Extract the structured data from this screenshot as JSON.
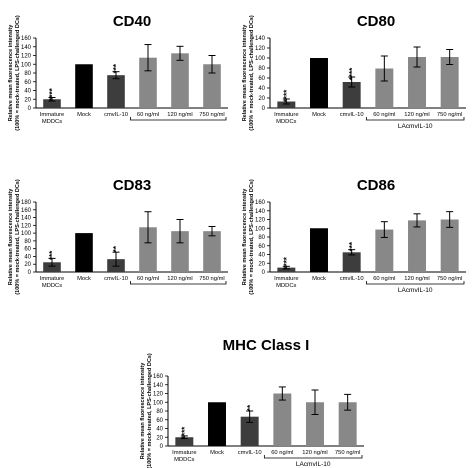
{
  "y_axis_label_line1": "Relative mean fluorescence intensity",
  "y_axis_label_line2": "(100% = mock-treated, LPS-challenged DCs)",
  "bar_colors": {
    "dark": "#3d3d3d",
    "black": "#000000",
    "gray": "#888888"
  },
  "chart_data": [
    {
      "type": "bar",
      "title": "CD40",
      "categories": [
        "Immature MDDCs",
        "Mock",
        "cmvIL-10",
        "60 ng/ml",
        "120 ng/ml",
        "750 ng/ml"
      ],
      "category_lines": [
        [
          "Immature",
          "MDDCs"
        ],
        [
          "Mock"
        ],
        [
          "cmvIL-10"
        ],
        [
          "60 ng/ml"
        ],
        [
          "120 ng/ml"
        ],
        [
          "750 ng/ml"
        ]
      ],
      "values": [
        20,
        100,
        75,
        115,
        125,
        100
      ],
      "errors": [
        4,
        0,
        8,
        30,
        16,
        20
      ],
      "significance": [
        "****",
        "",
        "***",
        "",
        "",
        ""
      ],
      "yticks": [
        0,
        20,
        40,
        60,
        80,
        100,
        120,
        140,
        160
      ],
      "ylim": [
        0,
        160
      ],
      "group_label": "LAcmvIL-10",
      "group_label_visible": false
    },
    {
      "type": "bar",
      "title": "CD80",
      "categories": [
        "Immature MDDCs",
        "Mock",
        "cmvIL-10",
        "60 ng/ml",
        "120 ng/ml",
        "750 ng/ml"
      ],
      "category_lines": [
        [
          "Immature",
          "MDDCs"
        ],
        [
          "Mock"
        ],
        [
          "cmvIL-10"
        ],
        [
          "60 ng/ml"
        ],
        [
          "120 ng/ml"
        ],
        [
          "750 ng/ml"
        ]
      ],
      "values": [
        13,
        100,
        52,
        79,
        102,
        102
      ],
      "errors": [
        5,
        0,
        10,
        25,
        20,
        15
      ],
      "significance": [
        "****",
        "",
        "****",
        "",
        "",
        ""
      ],
      "yticks": [
        0,
        20,
        40,
        60,
        80,
        100,
        120,
        140
      ],
      "ylim": [
        0,
        140
      ],
      "group_label": "LAcmvIL-10",
      "group_label_visible": true
    },
    {
      "type": "bar",
      "title": "CD83",
      "categories": [
        "Immature MDDCs",
        "Mock",
        "cmvIL-10",
        "60 ng/ml",
        "120 ng/ml",
        "750 ng/ml"
      ],
      "category_lines": [
        [
          "Immature",
          "MDDCs"
        ],
        [
          "Mock"
        ],
        [
          "cmvIL-10"
        ],
        [
          "60 ng/ml"
        ],
        [
          "120 ng/ml"
        ],
        [
          "750 ng/ml"
        ]
      ],
      "values": [
        25,
        100,
        33,
        115,
        105,
        105
      ],
      "errors": [
        10,
        0,
        18,
        40,
        30,
        12
      ],
      "significance": [
        "***",
        "",
        "**",
        "",
        "",
        ""
      ],
      "yticks": [
        0,
        20,
        40,
        60,
        80,
        100,
        120,
        140,
        160,
        180
      ],
      "ylim": [
        0,
        180
      ],
      "group_label": "LAcmvIL-10",
      "group_label_visible": false
    },
    {
      "type": "bar",
      "title": "CD86",
      "categories": [
        "Immature MDDCs",
        "Mock",
        "cmvIL-10",
        "60 ng/ml",
        "120 ng/ml",
        "750 ng/ml"
      ],
      "category_lines": [
        [
          "Immature",
          "MDDCs"
        ],
        [
          "Mock"
        ],
        [
          "cmvIL-10"
        ],
        [
          "60 ng/ml"
        ],
        [
          "120 ng/ml"
        ],
        [
          "750 ng/ml"
        ]
      ],
      "values": [
        10,
        100,
        45,
        97,
        118,
        120
      ],
      "errors": [
        3,
        0,
        6,
        18,
        15,
        18
      ],
      "significance": [
        "****",
        "",
        "***",
        "",
        "",
        ""
      ],
      "yticks": [
        0,
        20,
        40,
        60,
        80,
        100,
        120,
        140,
        160
      ],
      "ylim": [
        0,
        160
      ],
      "group_label": "LAcmvIL-10",
      "group_label_visible": true
    },
    {
      "type": "bar",
      "title": "MHC Class I",
      "categories": [
        "Immature MDDCs",
        "Mock",
        "cmvIL-10",
        "60 ng/ml",
        "120 ng/ml",
        "750 ng/ml"
      ],
      "category_lines": [
        [
          "Immature",
          "MDDCs"
        ],
        [
          "Mock"
        ],
        [
          "cmvIL-10"
        ],
        [
          "60 ng/ml"
        ],
        [
          "120 ng/ml"
        ],
        [
          "750 ng/ml"
        ]
      ],
      "values": [
        20,
        100,
        67,
        120,
        100,
        100
      ],
      "errors": [
        3,
        0,
        13,
        15,
        28,
        18
      ],
      "significance": [
        "****",
        "",
        "**",
        "",
        "",
        ""
      ],
      "yticks": [
        0,
        20,
        40,
        60,
        80,
        100,
        120,
        140,
        160
      ],
      "ylim": [
        0,
        160
      ],
      "group_label": "LAcmvIL-10",
      "group_label_visible": true
    }
  ]
}
